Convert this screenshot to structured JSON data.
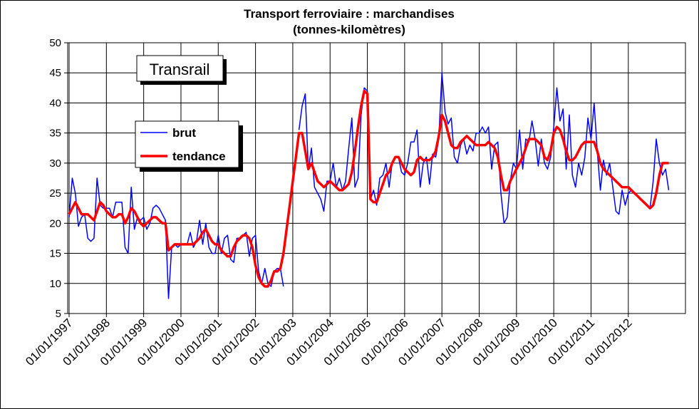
{
  "chart_data": {
    "type": "line",
    "title": "Transport ferroviaire : marchandises",
    "subtitle": "(tonnes-kilomètres)",
    "annotation": "Transrail",
    "categories": [
      "01/01/1997",
      null,
      null,
      null,
      null,
      null,
      null,
      null,
      null,
      null,
      null,
      null,
      "01/01/1998",
      null,
      null,
      null,
      null,
      null,
      null,
      null,
      null,
      null,
      null,
      null,
      "01/01/1999",
      null,
      null,
      null,
      null,
      null,
      null,
      null,
      null,
      null,
      null,
      null,
      "01/01/2000",
      null,
      null,
      null,
      null,
      null,
      null,
      null,
      null,
      null,
      null,
      null,
      "01/01/2001",
      null,
      null,
      null,
      null,
      null,
      null,
      null,
      null,
      null,
      null,
      null,
      "01/01/2002",
      null,
      null,
      null,
      null,
      null,
      null,
      null,
      null,
      null,
      null,
      null,
      "01/01/2003",
      null,
      null,
      null,
      null,
      null,
      null,
      null,
      null,
      null,
      null,
      null,
      "01/01/2004",
      null,
      null,
      null,
      null,
      null,
      null,
      null,
      null,
      null,
      null,
      null,
      "01/01/2005",
      null,
      null,
      null,
      null,
      null,
      null,
      null,
      null,
      null,
      null,
      null,
      "01/01/2006",
      null,
      null,
      null,
      null,
      null,
      null,
      null,
      null,
      null,
      null,
      null,
      "01/01/2007",
      null,
      null,
      null,
      null,
      null,
      null,
      null,
      null,
      null,
      null,
      null,
      "01/01/2008",
      null,
      null,
      null,
      null,
      null,
      null,
      null,
      null,
      null,
      null,
      null,
      "01/01/2009",
      null,
      null,
      null,
      null,
      null,
      null,
      null,
      null,
      null,
      null,
      null,
      "01/01/2010",
      null,
      null,
      null,
      null,
      null,
      null,
      null,
      null,
      null,
      null,
      null,
      "01/01/2011",
      null,
      null,
      null,
      null,
      null,
      null,
      null,
      null,
      null,
      null,
      null,
      "01/01/2012",
      null,
      null,
      null,
      null,
      null,
      null,
      null,
      null,
      null,
      null,
      null,
      null,
      null
    ],
    "series": [
      {
        "name": "brut",
        "color": "#0000ff",
        "values": [
          21,
          27.5,
          25,
          19.5,
          21,
          21.5,
          17.5,
          17,
          17.5,
          27.5,
          23,
          22.5,
          22.5,
          22.5,
          21,
          23.5,
          23.5,
          23.5,
          16,
          15,
          26,
          19,
          21,
          20.5,
          21,
          19,
          20,
          22.5,
          23,
          22.5,
          21.5,
          20.5,
          7.5,
          16,
          16.5,
          16,
          16.5,
          16.5,
          16.5,
          18.5,
          16,
          17,
          20.5,
          16.5,
          20,
          16,
          15,
          15,
          18,
          15,
          17.5,
          18,
          14,
          13.5,
          17.5,
          17.5,
          18,
          18.5,
          14.5,
          17.5,
          18,
          12,
          10,
          12.5,
          10,
          9.5,
          12,
          12.5,
          12.5,
          9.5,
          null,
          null,
          null,
          null,
          35.5,
          39.5,
          41.5,
          29,
          32.5,
          26,
          25,
          24,
          22,
          27,
          27,
          30,
          26,
          27.5,
          25.5,
          27,
          32.5,
          37.5,
          26,
          27.5,
          38,
          42.5,
          42,
          24,
          25.5,
          23,
          27.5,
          28,
          30,
          26,
          30,
          31,
          31,
          28.5,
          28,
          30,
          33.5,
          33.5,
          35.5,
          26,
          30,
          31,
          26.5,
          31.5,
          31,
          34,
          45,
          38.5,
          36.5,
          37.5,
          31,
          30,
          33,
          34,
          31.5,
          33,
          32,
          35,
          35,
          36,
          35,
          36,
          29,
          33,
          33.5,
          25,
          20,
          21,
          27,
          30,
          29,
          35.5,
          29,
          34,
          33.5,
          37,
          34,
          29.5,
          34,
          30,
          29,
          31,
          36,
          42.5,
          37,
          39,
          29,
          38,
          28,
          26,
          30,
          28,
          31,
          37.5,
          34,
          40,
          32,
          25.5,
          30.5,
          28,
          30,
          26,
          22,
          21.5,
          25.5,
          23,
          25,
          25.5,
          25,
          24.5,
          24,
          23.5,
          23,
          22.5,
          27,
          34,
          30,
          28,
          29,
          25.5
        ]
      },
      {
        "name": "tendance",
        "color": "#ff0000",
        "values": [
          21.5,
          22.5,
          23.5,
          22.5,
          21.5,
          21.5,
          21.5,
          21,
          20.5,
          22,
          23.5,
          23,
          22,
          21.5,
          21,
          21,
          21.5,
          21.5,
          20,
          21,
          22.5,
          22,
          21,
          20,
          19.5,
          20,
          20.5,
          21,
          21,
          20.5,
          20,
          20,
          15.5,
          16,
          16.5,
          16.5,
          16.5,
          16.5,
          16.5,
          16.5,
          16.5,
          17,
          17.5,
          18.5,
          19,
          18,
          17,
          16.5,
          16.5,
          15.5,
          15,
          14.5,
          14.5,
          16,
          17,
          17.5,
          18,
          18,
          17.5,
          16,
          13,
          11,
          10,
          9.5,
          9.5,
          10.5,
          12,
          12,
          12.5,
          15,
          19,
          23,
          27,
          31,
          35,
          35,
          32,
          29,
          30,
          28.5,
          27,
          26.5,
          26,
          26.5,
          27,
          26.5,
          26,
          25.5,
          25.5,
          26,
          26.5,
          28.5,
          32,
          36,
          39.5,
          42,
          41.5,
          24,
          23.5,
          23.5,
          25,
          26.5,
          28,
          28.5,
          30,
          31,
          31,
          30,
          29,
          28.5,
          28,
          28.5,
          30.5,
          31,
          30.5,
          30.5,
          30.5,
          31,
          32,
          34.5,
          38,
          37,
          35,
          33,
          32.5,
          32.5,
          33.5,
          34,
          34.5,
          34,
          33.5,
          33,
          33,
          33,
          33,
          33.5,
          33,
          32.5,
          31,
          28,
          25.5,
          25.5,
          27,
          28,
          29,
          30,
          31,
          32.5,
          34,
          34,
          34,
          33.5,
          33,
          31,
          30.5,
          32,
          35,
          36,
          35.5,
          34,
          32,
          30.5,
          30.5,
          31,
          32,
          33,
          33.5,
          33.5,
          33.5,
          33.5,
          32,
          30,
          29,
          28.5,
          28,
          27.5,
          27,
          26.5,
          26,
          26,
          26,
          25.5,
          25,
          24.5,
          24,
          23.5,
          23,
          22.5,
          23,
          25,
          28,
          30,
          30,
          30
        ]
      }
    ],
    "ylim": [
      5,
      50
    ],
    "yticks": [
      5,
      10,
      15,
      20,
      25,
      30,
      35,
      40,
      45,
      50
    ],
    "grid": true
  }
}
